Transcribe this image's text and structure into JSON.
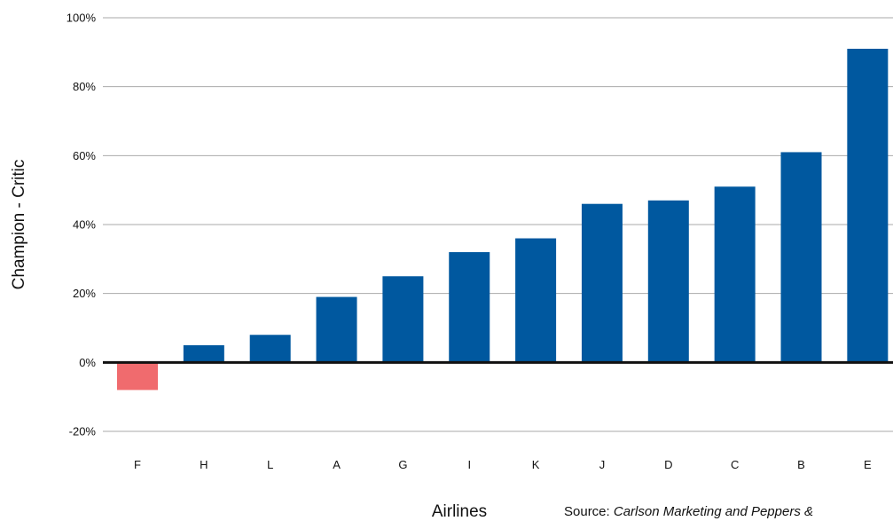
{
  "chart_data": {
    "type": "bar",
    "categories": [
      "F",
      "H",
      "L",
      "A",
      "G",
      "I",
      "K",
      "J",
      "D",
      "C",
      "B",
      "E"
    ],
    "values": [
      -8,
      5,
      8,
      19,
      25,
      32,
      36,
      46,
      47,
      51,
      61,
      91
    ],
    "ylim": [
      -20,
      100
    ],
    "yticks": [
      "-20%",
      "0%",
      "20%",
      "40%",
      "60%",
      "80%",
      "100%"
    ],
    "ytick_values": [
      -20,
      0,
      20,
      40,
      60,
      80,
      100
    ],
    "xlabel": "Airlines",
    "ylabel": "Champion - Critic",
    "grid": true,
    "colors": {
      "positive": "#00589f",
      "negative": "#f06b6e",
      "grid": "#aaaaaa",
      "zero_line": "#111111"
    }
  },
  "source": {
    "prefix": "Source: ",
    "text": "Carlson Marketing and Peppers &"
  }
}
